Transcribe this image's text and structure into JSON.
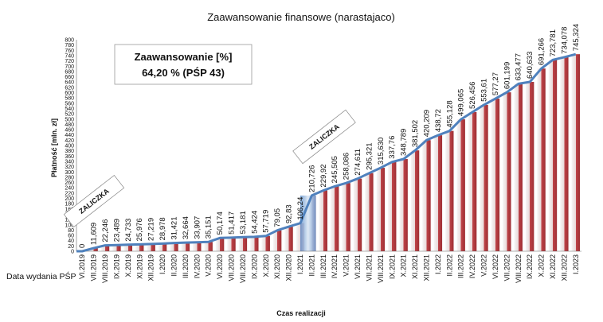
{
  "chart_data": {
    "type": "bar",
    "title": "Zaawansowanie finansowe (narastajaco)",
    "ylabel": "Płatność [mln. zł]",
    "xlabel": "Czas realizacji",
    "side_label": "Data wydania PŚP",
    "ylim": [
      0,
      800
    ],
    "ytick_step": 20,
    "grid": false,
    "info_box": {
      "line1": "Zaawansowanie [%]",
      "line2": "64,20 % (PŚP 43)"
    },
    "annotations": [
      "ZALICZKA",
      "ZALICZKA"
    ],
    "categories": [
      "VI.2019",
      "VII.2019",
      "VIII.2019",
      "IX.2019",
      "X.2019",
      "XI.2019",
      "XII.2019",
      "I.2020",
      "II.2020",
      "III.2020",
      "IV.2020",
      "V.2020",
      "VI.2020",
      "VII.2020",
      "VIII.2020",
      "IX.2020",
      "X.2020",
      "XI.2020",
      "XII.2020",
      "I.2021",
      "II.2021",
      "III.2021",
      "IV.2021",
      "V.2021",
      "VI.2021",
      "VII.2021",
      "VIII.2021",
      "IX.2021",
      "X.2021",
      "XI.2021",
      "XII.2021",
      "I.2022",
      "II.2022",
      "III.2022",
      "IV.2022",
      "V.2022",
      "VI.2022",
      "VII.2022",
      "VIII.2022",
      "IX.2022",
      "X.2022",
      "XI.2022",
      "XII.2022",
      "I.2023"
    ],
    "x_tick_labels": [
      "VI.2019",
      "VII.2019",
      "VIII.2019",
      "IX.2019",
      "X.2019",
      "XI.2019",
      "XII.2019",
      "I.2020",
      "II.2020",
      "III.2020",
      "IV.2020",
      "V.2020",
      "VI.2020",
      "VII.2020",
      "VIII.2020",
      "IX.2020",
      "X.2020",
      "XI.2020",
      "XII.2020",
      "I.2021",
      "II.2021",
      "III.2021",
      "IV.2021",
      "V.2021",
      "VI.2021",
      "VII.2021",
      "VIII.2021",
      "IX.2021",
      "X.2021",
      "XI.2021",
      "XII.2021",
      "I.2022",
      "II.2022",
      "III.2022",
      "IV.2022",
      "V.2022",
      "VI.2022",
      "VII.2022",
      "VIII.2022",
      "IX.2022",
      "X.2022",
      "XI.2022",
      "XII.2022",
      "I.2023"
    ],
    "values": [
      0,
      11.609,
      22.246,
      23.489,
      24.733,
      25.976,
      27.219,
      28.978,
      31.421,
      32.664,
      33.907,
      35.151,
      50.174,
      51.417,
      53.181,
      54.424,
      57.719,
      79.05,
      92.83,
      106.24,
      210.726,
      229.92,
      245.505,
      258.086,
      274.611,
      295.321,
      315.63,
      337.76,
      348.789,
      381.502,
      420.209,
      438.72,
      455.128,
      499.065,
      526.456,
      553.61,
      577.27,
      601.199,
      633.477,
      640.633,
      691.266,
      723.781,
      734.078,
      745.324
    ],
    "value_labels": [
      "0",
      "11,609",
      "22,246",
      "23,489",
      "24,733",
      "25,976",
      "27,219",
      "28,978",
      "31,421",
      "32,664",
      "33,907",
      "35,151",
      "50,174",
      "51,417",
      "53,181",
      "54,424",
      "57,719",
      "79,05",
      "92,83",
      "106,24",
      "210,726",
      "229,92",
      "245,505",
      "258,086",
      "274,611",
      "295,321",
      "315,630",
      "337,76",
      "348,789",
      "381,502",
      "420,209",
      "438,72",
      "455,128",
      "499,065",
      "526,456",
      "553,61",
      "577,27",
      "601,199",
      "633,477",
      "640,633",
      "691,266",
      "723,781",
      "734,078",
      "745,324"
    ],
    "colors": {
      "bar": "#b8373c",
      "bar_light": "#f2f2f2",
      "line": "#4f81bd",
      "highlight": "#8fb4dc"
    }
  }
}
